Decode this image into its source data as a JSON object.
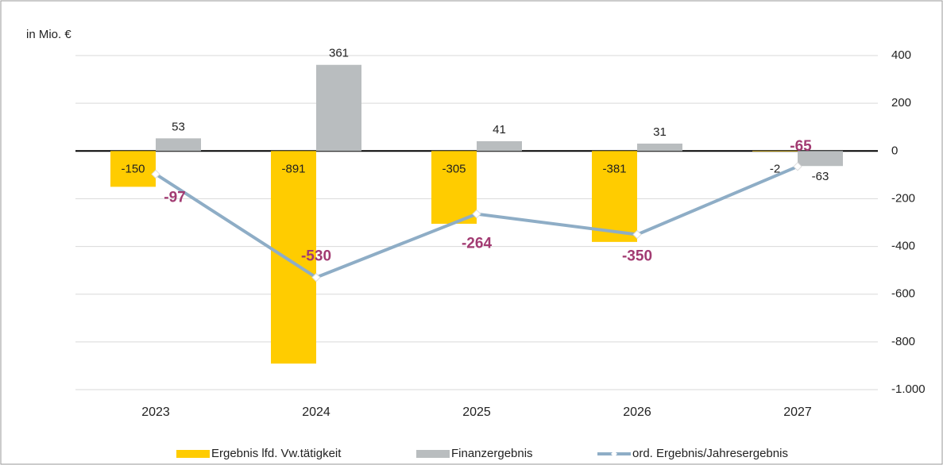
{
  "chart_data": {
    "type": "bar_line",
    "y_label": "in Mio. €",
    "categories": [
      "2023",
      "2024",
      "2025",
      "2026",
      "2027"
    ],
    "series": [
      {
        "name": "Ergebnis lfd. Vw.tätigkeit",
        "type": "bar",
        "color": "#FFCC00",
        "values": [
          -150,
          -891,
          -305,
          -381,
          -2
        ]
      },
      {
        "name": "Finanzergebnis",
        "type": "bar",
        "color": "#B9BDBF",
        "values": [
          53,
          361,
          41,
          31,
          -63
        ]
      },
      {
        "name": "ord. Ergebnis/Jahresergebnis",
        "type": "line",
        "color": "#8EADC6",
        "label_color": "#A23B72",
        "values": [
          -97,
          -530,
          -264,
          -350,
          -65
        ]
      }
    ],
    "ylim": [
      -1000,
      400
    ],
    "yticks": [
      400,
      200,
      0,
      -200,
      -400,
      -600,
      -800,
      {
        "value": -1000,
        "label": "-1.000"
      }
    ],
    "grid": true
  }
}
